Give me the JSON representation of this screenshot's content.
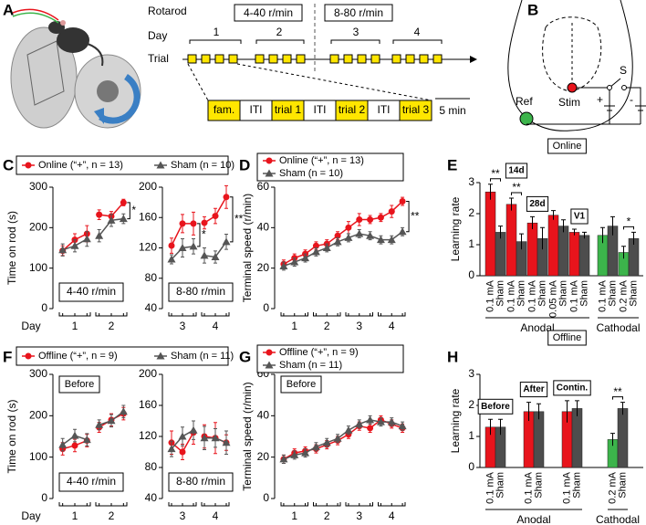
{
  "figure": {
    "panels": [
      "A",
      "B",
      "C",
      "D",
      "E",
      "F",
      "G",
      "H"
    ],
    "rotarod": {
      "title": "Rotarod",
      "speeds": [
        "4-40 r/min",
        "8-80 r/min"
      ],
      "day_label": "Day",
      "days": [
        "1",
        "2",
        "3",
        "4"
      ],
      "trial_label": "Trial",
      "segments": [
        "fam.",
        "ITI",
        "trial 1",
        "ITI",
        "trial 2",
        "ITI",
        "trial 3"
      ],
      "scale": "5 min"
    },
    "electrodes": {
      "stim": "Stim",
      "switch": "S",
      "plus": "+",
      "minus": "-",
      "ref": "Ref"
    }
  },
  "chart_data": [
    {
      "type": "line",
      "ylabel": "Time on rod (s)",
      "xlabel": "Day",
      "days": [
        "1",
        "2"
      ],
      "split_by_day": true,
      "ylim": [
        0,
        300
      ],
      "yticks": [
        0,
        100,
        200,
        300
      ],
      "box_label": "4-40 r/min",
      "annotations": [
        "*"
      ],
      "series": [
        {
          "name": "Online (“+”, n = 13)",
          "color": "#e8141c",
          "marker": "circle",
          "values": [
            143,
            170,
            185,
            232,
            228,
            262
          ],
          "errors": [
            12,
            15,
            20,
            12,
            12,
            8
          ]
        },
        {
          "name": "Sham (n = 10)",
          "color": "#555555",
          "marker": "triangle",
          "values": [
            145,
            155,
            172,
            180,
            218,
            222
          ],
          "errors": [
            15,
            15,
            18,
            15,
            15,
            12
          ]
        }
      ]
    },
    {
      "type": "line",
      "days": [
        "3",
        "4"
      ],
      "split_by_day": true,
      "ylim": [
        40,
        200
      ],
      "yticks": [
        40,
        80,
        120,
        160,
        200
      ],
      "box_label": "8-80 r/min",
      "annotations": [
        "*",
        "**"
      ],
      "series": [
        {
          "color": "#e8141c",
          "marker": "circle",
          "values": [
            123,
            152,
            152,
            153,
            162,
            187
          ],
          "errors": [
            10,
            12,
            15,
            8,
            10,
            15
          ]
        },
        {
          "color": "#555555",
          "marker": "triangle",
          "values": [
            105,
            120,
            122,
            110,
            108,
            128
          ],
          "errors": [
            6,
            12,
            10,
            10,
            8,
            10
          ]
        }
      ]
    },
    {
      "type": "line",
      "ylabel": "Terminal  speed (r/min)",
      "days": [
        "1",
        "2",
        "3",
        "4"
      ],
      "split_by_day": false,
      "ylim": [
        0,
        60
      ],
      "yticks": [
        0,
        20,
        40,
        60
      ],
      "annotations": [
        "**"
      ],
      "series": [
        {
          "name": "Online (“+”, n = 13)",
          "color": "#e8141c",
          "marker": "circle",
          "values": [
            22,
            25,
            27,
            31,
            32,
            36,
            40,
            44,
            44,
            45,
            48,
            53
          ],
          "errors": [
            2,
            2,
            2,
            2,
            2,
            2,
            3,
            3,
            2,
            2,
            3,
            2
          ]
        },
        {
          "name": "Sham (n = 10)",
          "color": "#555555",
          "marker": "triangle",
          "values": [
            21,
            23,
            25,
            28,
            30,
            33,
            35,
            37,
            36,
            34,
            34,
            38
          ],
          "errors": [
            2,
            2,
            2,
            2,
            2,
            2,
            2,
            2,
            2,
            2,
            2,
            2
          ]
        }
      ]
    },
    {
      "type": "bar",
      "title": "Online",
      "ylabel": "Learning rate",
      "ylim": [
        0,
        3
      ],
      "yticks": [
        0,
        1,
        2,
        3
      ],
      "categories": [
        "0.1 mA",
        "Sham",
        "0.1 mA",
        "Sham",
        "0.1 mA",
        "Sham",
        "0.05 mA",
        "Sham",
        "0.1 mA",
        "Sham",
        "0.1 mA",
        "Sham",
        "0.2 mA",
        "Sham"
      ],
      "values": [
        2.7,
        1.4,
        2.3,
        1.1,
        1.7,
        1.2,
        1.95,
        1.6,
        1.4,
        1.3,
        1.3,
        1.6,
        0.75,
        1.2
      ],
      "errors": [
        0.25,
        0.2,
        0.2,
        0.25,
        0.2,
        0.35,
        0.15,
        0.2,
        0.1,
        0.1,
        0.25,
        0.3,
        0.2,
        0.2
      ],
      "colors": [
        "#e8141c",
        "#4d4d4d",
        "#e8141c",
        "#4d4d4d",
        "#e8141c",
        "#4d4d4d",
        "#e8141c",
        "#4d4d4d",
        "#e8141c",
        "#4d4d4d",
        "#3cb44b",
        "#4d4d4d",
        "#3cb44b",
        "#4d4d4d"
      ],
      "groups": [
        "Anodal",
        "Cathodal"
      ],
      "tags": [
        "14d",
        "28d",
        "V1"
      ],
      "annotations": [
        "**",
        "**",
        "*"
      ]
    },
    {
      "type": "line",
      "ylabel": "Time on rod (s)",
      "xlabel": "Day",
      "days": [
        "1",
        "2"
      ],
      "split_by_day": true,
      "ylim": [
        0,
        300
      ],
      "yticks": [
        0,
        100,
        200,
        300
      ],
      "box_label": "4-40 r/min",
      "tag": "Before",
      "series": [
        {
          "name": "Offline (“+”, n = 9)",
          "color": "#e8141c",
          "marker": "circle",
          "values": [
            120,
            128,
            140,
            172,
            190,
            205
          ],
          "errors": [
            15,
            15,
            15,
            12,
            15,
            15
          ]
        },
        {
          "name": "Sham (n = 11)",
          "color": "#555555",
          "marker": "triangle",
          "values": [
            130,
            152,
            142,
            178,
            188,
            210
          ],
          "errors": [
            15,
            15,
            15,
            12,
            15,
            15
          ]
        }
      ]
    },
    {
      "type": "line",
      "days": [
        "3",
        "4"
      ],
      "split_by_day": true,
      "ylim": [
        40,
        200
      ],
      "yticks": [
        40,
        80,
        120,
        160,
        200
      ],
      "box_label": "8-80 r/min",
      "series": [
        {
          "color": "#e8141c",
          "marker": "circle",
          "values": [
            112,
            100,
            125,
            120,
            118,
            112
          ],
          "errors": [
            15,
            10,
            15,
            15,
            20,
            10
          ]
        },
        {
          "color": "#555555",
          "marker": "triangle",
          "values": [
            104,
            120,
            128,
            118,
            118,
            112
          ],
          "errors": [
            10,
            12,
            12,
            15,
            12,
            15
          ]
        }
      ]
    },
    {
      "type": "line",
      "ylabel": "Terminal  speed (r/min)",
      "days": [
        "1",
        "2",
        "3",
        "4"
      ],
      "split_by_day": false,
      "ylim": [
        0,
        60
      ],
      "yticks": [
        0,
        20,
        40,
        60
      ],
      "tag": "Before",
      "series": [
        {
          "name": "Offline (“+”, n = 9)",
          "color": "#e8141c",
          "marker": "circle",
          "values": [
            19,
            22,
            23,
            24,
            26,
            28,
            31,
            35,
            34,
            38,
            36,
            34
          ],
          "errors": [
            2,
            2,
            2,
            2,
            2,
            2,
            2,
            2,
            2,
            2,
            2,
            2
          ]
        },
        {
          "name": "Sham (n = 11)",
          "color": "#555555",
          "marker": "triangle",
          "values": [
            19,
            21,
            22,
            25,
            27,
            29,
            33,
            36,
            38,
            37,
            37,
            35
          ],
          "errors": [
            2,
            2,
            2,
            2,
            2,
            2,
            2,
            2,
            2,
            2,
            2,
            2
          ]
        }
      ]
    },
    {
      "type": "bar",
      "title": "Offline",
      "ylabel": "Learning rate",
      "ylim": [
        0,
        3
      ],
      "yticks": [
        0,
        1,
        2,
        3
      ],
      "categories": [
        "0.1 mA",
        "Sham",
        "0.1 mA",
        "Sham",
        "0.1 mA",
        "Sham",
        "0.2 mA",
        "Sham"
      ],
      "values": [
        1.3,
        1.3,
        1.8,
        1.8,
        1.8,
        1.9,
        0.9,
        1.9
      ],
      "errors": [
        0.25,
        0.25,
        0.3,
        0.25,
        0.35,
        0.25,
        0.2,
        0.2
      ],
      "colors": [
        "#e8141c",
        "#4d4d4d",
        "#e8141c",
        "#4d4d4d",
        "#e8141c",
        "#4d4d4d",
        "#3cb44b",
        "#4d4d4d"
      ],
      "groups": [
        "Anodal",
        "Cathodal"
      ],
      "tags": [
        "Before",
        "After",
        "Contin."
      ],
      "annotations": [
        "**"
      ]
    }
  ]
}
